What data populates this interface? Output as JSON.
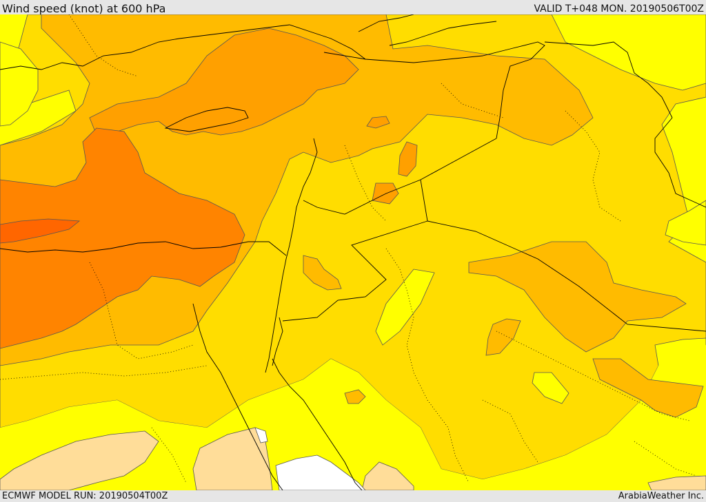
{
  "header": {
    "title": "Wind speed (knot) at 600 hPa",
    "valid": "VALID T+048 MON. 20190506T00Z"
  },
  "footer": {
    "model_run": "ECMWF MODEL RUN: 20190504T00Z",
    "provider": "ArabiaWeather Inc."
  },
  "map": {
    "field": "wind-speed",
    "colors": {
      "band_light": "#ffdd99",
      "band_yellow": "#ffff00",
      "band_gold": "#ffdd00",
      "band_amber": "#ffbb00",
      "band_orange": "#ffa000",
      "band_deep": "#ff8400",
      "band_red": "#ff6600",
      "no_data": "#ffffff",
      "contour": "#555555",
      "border": "#000000"
    }
  }
}
